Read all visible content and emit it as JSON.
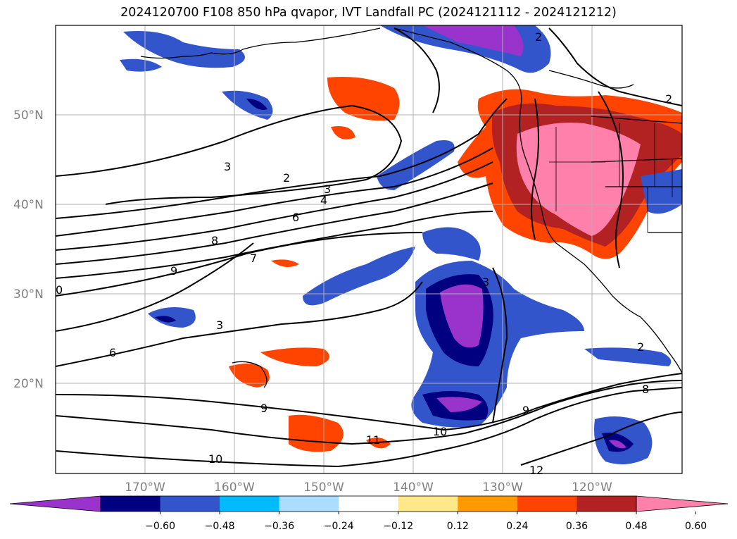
{
  "title": "2024120700 F108 850 hPa qvapor, IVT Landfall PC (2024121112 - 2024121212)",
  "lat_labels": [
    "50°N",
    "40°N",
    "30°N",
    "20°N"
  ],
  "lon_labels": [
    "170°W",
    "160°W",
    "150°W",
    "140°W",
    "130°W",
    "120°W"
  ],
  "contour_labels": [
    "2",
    "3",
    "3",
    "4",
    "6",
    "8",
    "7",
    "9",
    "0",
    "3",
    "6",
    "9",
    "10",
    "11",
    "10",
    "12",
    "2",
    "8",
    "9",
    "2",
    "3",
    "2"
  ],
  "colorbar": {
    "ticks": [
      "−0.60",
      "−0.48",
      "−0.36",
      "−0.24",
      "−0.12",
      "0.12",
      "0.24",
      "0.36",
      "0.48",
      "0.60"
    ],
    "colors": {
      "under": "#9933cc",
      "c1": "#000080",
      "c2": "#3355cc",
      "c3": "#00bbff",
      "c4": "#aaddff",
      "c5": "#ffffff",
      "c6": "#ffe88a",
      "c7": "#ff9900",
      "c8": "#ff4400",
      "c9": "#b22222",
      "over": "#ff80aa"
    }
  }
}
